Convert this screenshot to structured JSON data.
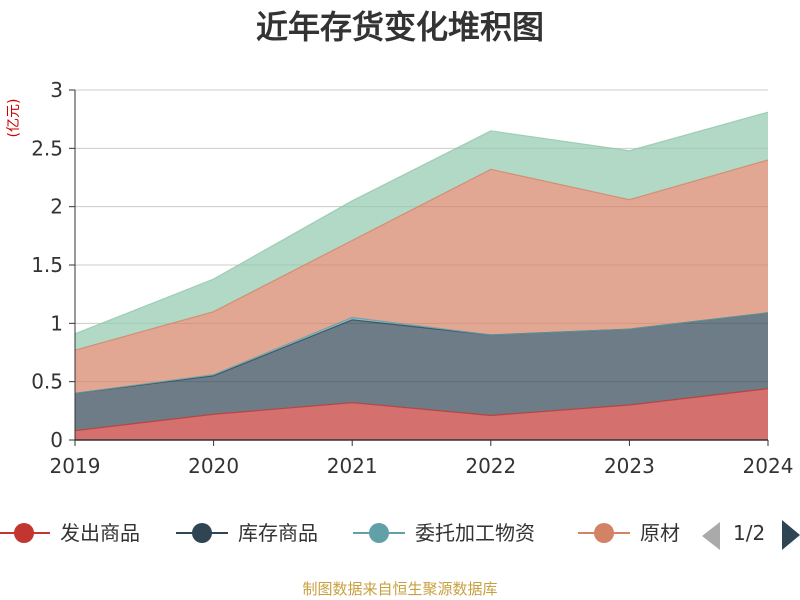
{
  "chart_data": {
    "type": "area",
    "stacked": true,
    "title": "近年存货变化堆积图",
    "ylabel": "(亿元)",
    "xlabel": "",
    "categories": [
      "2019",
      "2020",
      "2021",
      "2022",
      "2023",
      "2024"
    ],
    "ylim": [
      0,
      3
    ],
    "yticks": [
      "0",
      "0.5",
      "1",
      "1.5",
      "2",
      "2.5",
      "3"
    ],
    "series": [
      {
        "name": "发出商品",
        "color": "#c23531",
        "values": [
          0.08,
          0.22,
          0.32,
          0.21,
          0.3,
          0.44
        ]
      },
      {
        "name": "库存商品",
        "color": "#2f4554",
        "values": [
          0.32,
          0.33,
          0.71,
          0.69,
          0.65,
          0.65
        ]
      },
      {
        "name": "委托加工物资",
        "color": "#61a0a8",
        "values": [
          0.0,
          0.01,
          0.02,
          0.0,
          0.0,
          0.0
        ]
      },
      {
        "name": "原材料",
        "color": "#d48265",
        "values": [
          0.37,
          0.54,
          0.66,
          1.42,
          1.11,
          1.31
        ]
      },
      {
        "name": "",
        "color": "#91c7ae",
        "values": [
          0.14,
          0.28,
          0.34,
          0.33,
          0.42,
          0.41
        ]
      }
    ],
    "legend": {
      "position": "bottom",
      "visible_items": [
        "发出商品",
        "库存商品",
        "委托加工物资",
        "原材"
      ],
      "page": "1/2"
    },
    "source": "制图数据来自恒生聚源数据库",
    "grid": true
  }
}
